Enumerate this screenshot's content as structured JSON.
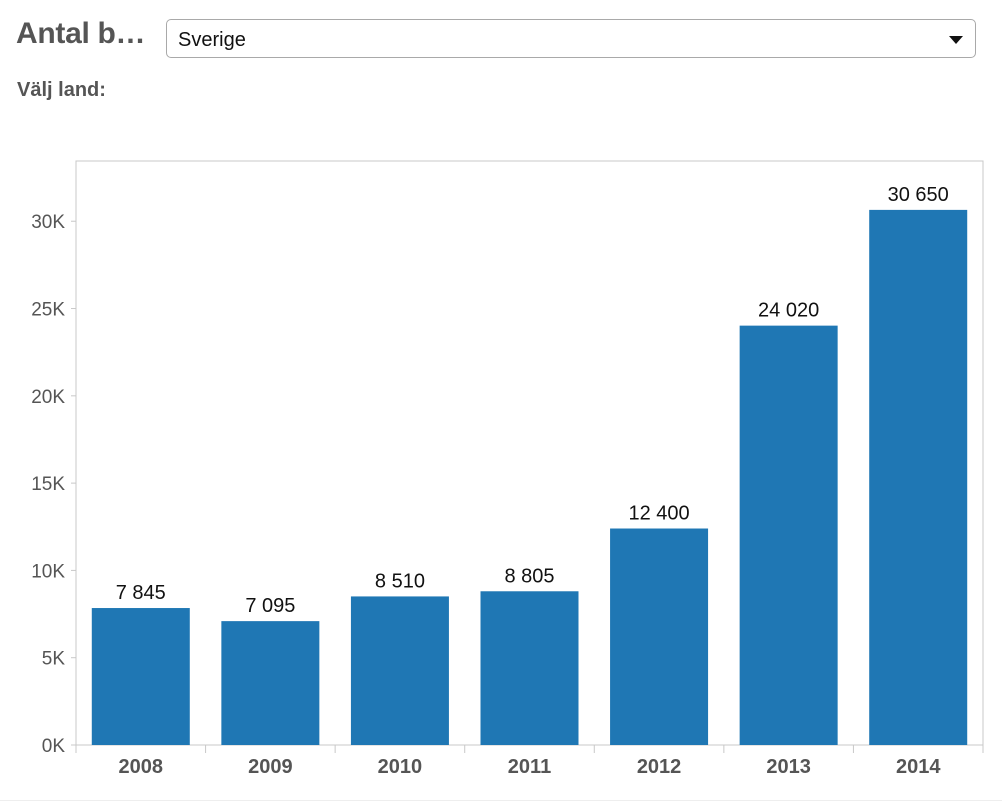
{
  "header": {
    "title": "Antal b…",
    "selector_value": "Sverige",
    "selector_label": "Välj land:"
  },
  "colors": {
    "bar": "#1f77b4",
    "axis": "#c8c8c8",
    "tick_text": "#555555",
    "label_text": "#111111"
  },
  "chart_data": {
    "type": "bar",
    "categories": [
      "2008",
      "2009",
      "2010",
      "2011",
      "2012",
      "2013",
      "2014"
    ],
    "values": [
      7845,
      7095,
      8510,
      8805,
      12400,
      24020,
      30650
    ],
    "value_labels": [
      "7 845",
      "7 095",
      "8 510",
      "8 805",
      "12 400",
      "24 020",
      "30 650"
    ],
    "yticks": [
      0,
      5000,
      10000,
      15000,
      20000,
      25000,
      30000
    ],
    "ytick_labels": [
      "0K",
      "5K",
      "10K",
      "15K",
      "20K",
      "25K",
      "30K"
    ],
    "ylim": [
      0,
      33450
    ],
    "grid": false,
    "title": "",
    "xlabel": "",
    "ylabel": ""
  }
}
